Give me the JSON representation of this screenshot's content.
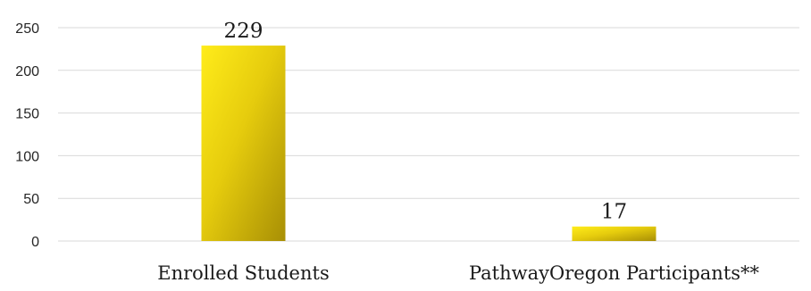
{
  "chart_data": {
    "type": "bar",
    "categories": [
      "Enrolled Students",
      "PathwayOregon Participants**"
    ],
    "values": [
      229,
      17
    ],
    "data_labels": [
      "229",
      "17"
    ],
    "title": "",
    "xlabel": "",
    "ylabel": "",
    "ylim": [
      0,
      250
    ],
    "yticks": [
      0,
      50,
      100,
      150,
      200,
      250
    ],
    "ytick_labels": [
      "0",
      "50",
      "100",
      "150",
      "200",
      "250"
    ],
    "grid": true,
    "legend": "none",
    "colors": {
      "bar_light": "#ffec1a",
      "bar_dark": "#a88f05",
      "grid": "#d9d9d9"
    }
  }
}
